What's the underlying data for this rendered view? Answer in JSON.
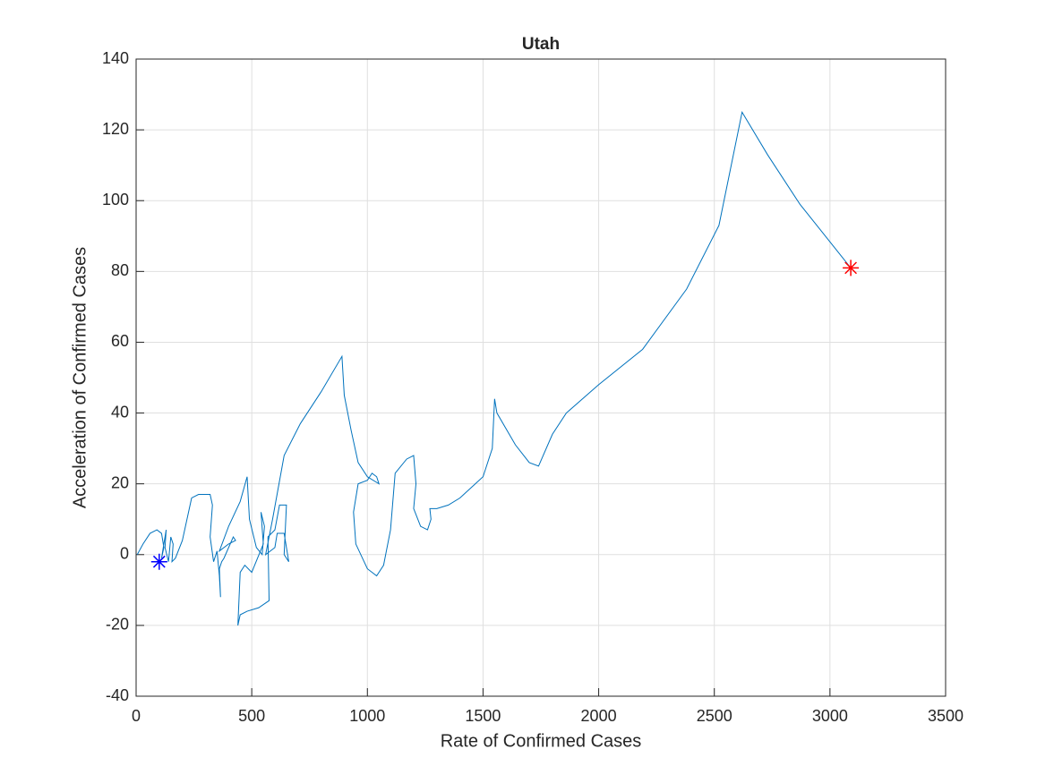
{
  "chart_data": {
    "type": "line",
    "title": "Utah",
    "xlabel": "Rate of Confirmed Cases",
    "ylabel": "Acceleration of Confirmed Cases",
    "xlim": [
      0,
      3500
    ],
    "ylim": [
      -40,
      140
    ],
    "xticks": [
      0,
      500,
      1000,
      1500,
      2000,
      2500,
      3000,
      3500
    ],
    "yticks": [
      -40,
      -20,
      0,
      20,
      40,
      60,
      80,
      100,
      120,
      140
    ],
    "grid": true,
    "series": [
      {
        "color": "#0072bd",
        "x": [
          5,
          30,
          60,
          90,
          110,
          120,
          110,
          130,
          125,
          140,
          150,
          160,
          155,
          170,
          200,
          240,
          270,
          320,
          330,
          320,
          335,
          350,
          360,
          365,
          360,
          370,
          380,
          400,
          420,
          430,
          400,
          360,
          400,
          450,
          480,
          490,
          520,
          545,
          555,
          540,
          550,
          500,
          470,
          450,
          440,
          450,
          480,
          530,
          575,
          570,
          600,
          620,
          650,
          640,
          660,
          640,
          610,
          600,
          560,
          590,
          640,
          710,
          800,
          890,
          900,
          930,
          960,
          1000,
          1050,
          1040,
          1020,
          1000,
          960,
          940,
          950,
          1000,
          1040,
          1070,
          1100,
          1120,
          1170,
          1200,
          1210,
          1200,
          1230,
          1260,
          1275,
          1270,
          1300,
          1350,
          1400,
          1450,
          1500,
          1540,
          1550,
          1560,
          1640,
          1700,
          1740,
          1800,
          1860,
          2000,
          2190,
          2380,
          2520,
          2620,
          2730,
          2870,
          3090
        ],
        "values": [
          0,
          3,
          6,
          7,
          6,
          2,
          -1,
          7,
          2,
          -2,
          5,
          3,
          -2,
          -1,
          4,
          16,
          17,
          17,
          14,
          5,
          -2,
          1,
          -6,
          -12,
          -4,
          -2,
          -1,
          2,
          5,
          4,
          3,
          1,
          8,
          15,
          22,
          10,
          2,
          0,
          8,
          12,
          3,
          -5,
          -3,
          -5,
          -20,
          -17,
          -16,
          -15,
          -13,
          5,
          7,
          14,
          14,
          0,
          -2,
          6,
          6,
          2,
          0,
          10,
          28,
          37,
          46,
          56,
          45,
          35,
          26,
          22,
          20,
          22,
          23,
          21,
          20,
          12,
          3,
          -4,
          -6,
          -3,
          7,
          23,
          27,
          28,
          20,
          13,
          8,
          7,
          10,
          13,
          13,
          14,
          16,
          19,
          22,
          30,
          44,
          40,
          31,
          26,
          25,
          34,
          40,
          48,
          58,
          75,
          93,
          125,
          113,
          99,
          81
        ]
      }
    ],
    "markers": [
      {
        "x": 100,
        "y": -2,
        "color": "#0000ff"
      },
      {
        "x": 3090,
        "y": 81,
        "color": "#ff0000"
      }
    ]
  }
}
